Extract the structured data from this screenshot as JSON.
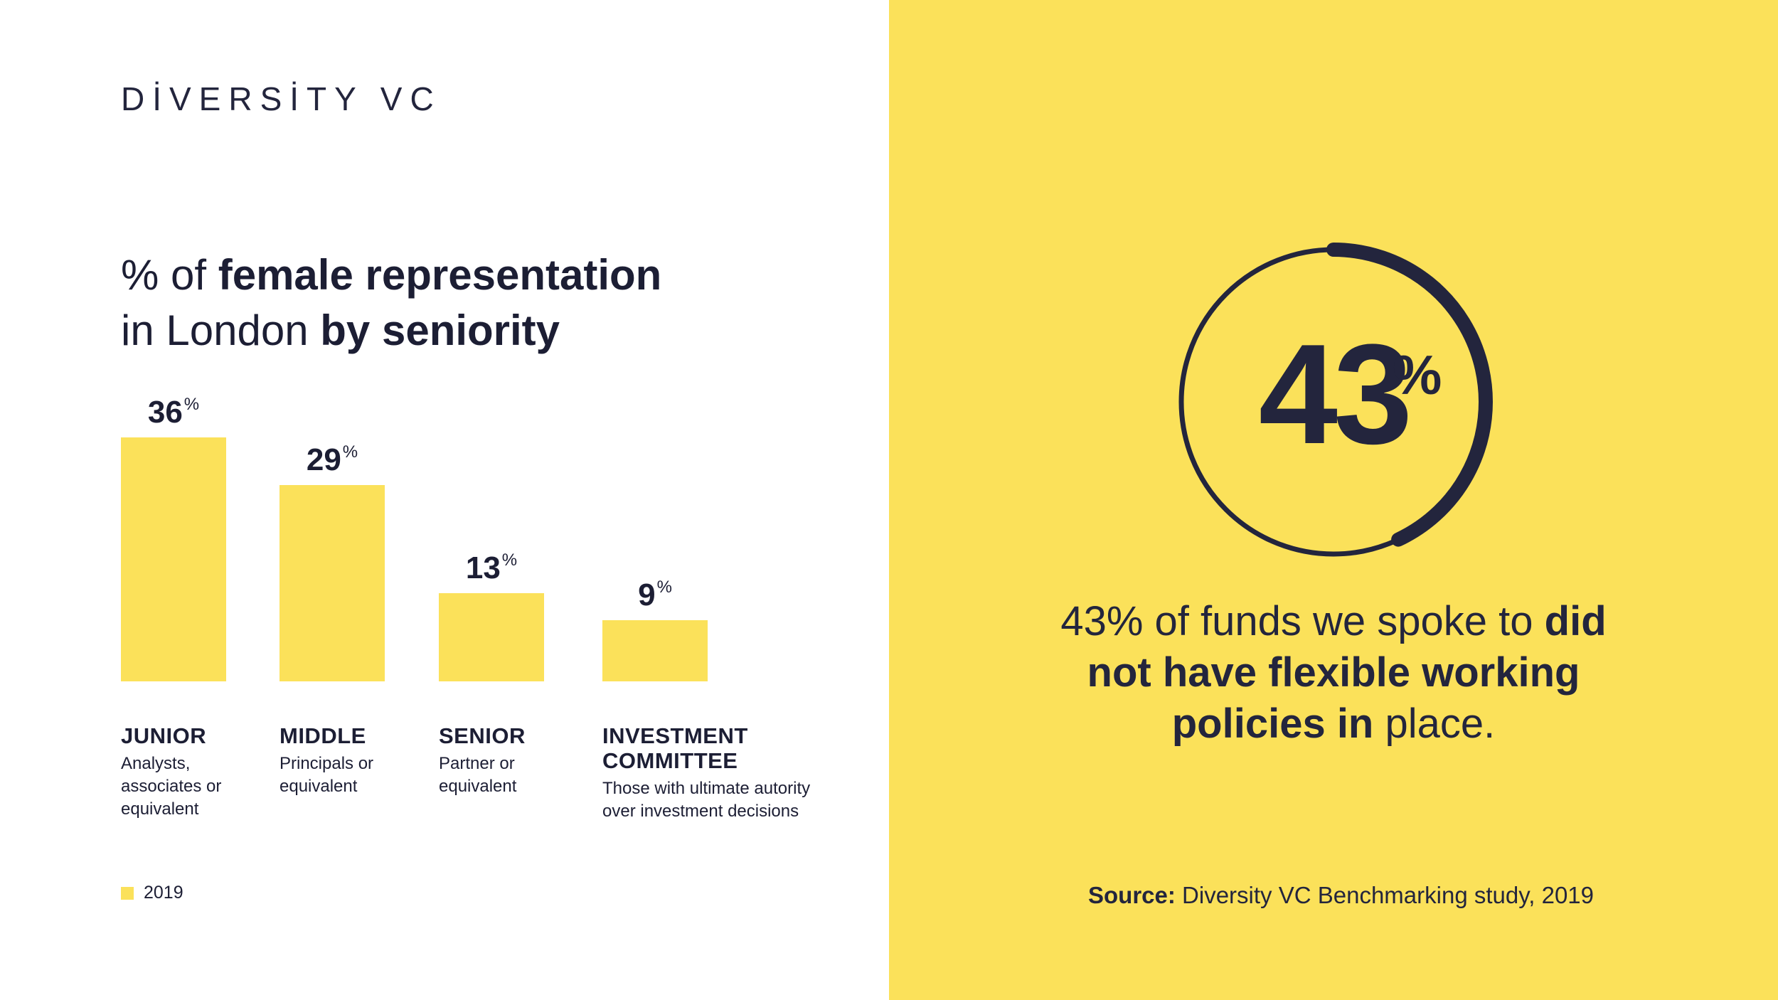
{
  "logo": {
    "text": "DİVERSİTY VC"
  },
  "title": {
    "part1": "% of ",
    "part1_bold": "female representation",
    "part2": "in London ",
    "part2_bold": "by seniority"
  },
  "chart_data": {
    "type": "bar",
    "categories": [
      "JUNIOR",
      "MIDDLE",
      "SENIOR",
      "INVESTMENT COMMITTEE"
    ],
    "category_descriptions": [
      "Analysts, associates or equivalent",
      "Principals or equivalent",
      "Partner or equivalent",
      "Those with ultimate autority over investment decisions"
    ],
    "series": [
      {
        "name": "2019",
        "values": [
          36,
          29,
          13,
          9
        ],
        "color": "#fbe15a"
      }
    ],
    "value_labels": [
      "36",
      "29",
      "13",
      "9"
    ],
    "value_suffix": "%",
    "ylim": [
      0,
      36
    ],
    "legend": {
      "position": "bottom-left"
    },
    "grid": false
  },
  "highlight": {
    "value": "43",
    "suffix": "%",
    "ring_fraction": 0.43,
    "ring_color": "#23253d",
    "statement_normal1": "43% of funds we spoke to ",
    "statement_bold": "did not have flexible working policies in",
    "statement_normal2": " place."
  },
  "source": {
    "label": "Source:",
    "text": " Diversity VC Benchmarking study, 2019"
  },
  "colors": {
    "accent_yellow": "#fbe15a",
    "navy": "#23253d",
    "background": "#ffffff"
  }
}
